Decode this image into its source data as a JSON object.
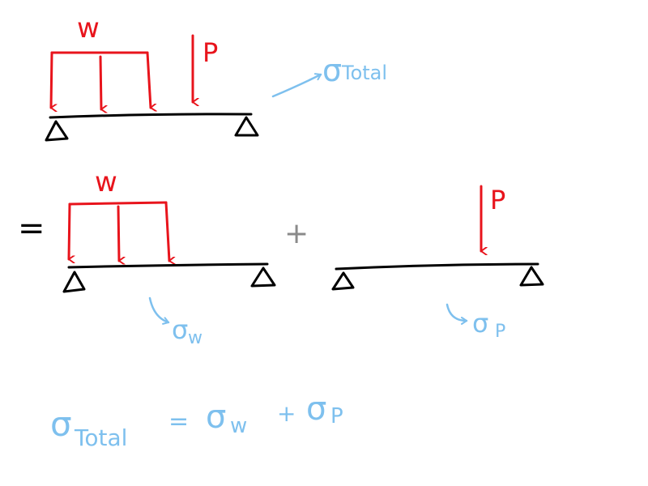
{
  "colors": {
    "load": "#e8141c",
    "beam": "#000000",
    "stress": "#7ec0ee",
    "operator": "#8a8a8a"
  },
  "total_system": {
    "w_label": "w",
    "p_label": "P",
    "result_sigma": "σ",
    "result_sub": "Total"
  },
  "w_system": {
    "equals": "=",
    "w_label": "w",
    "result_sigma": "σ",
    "result_sub": "w"
  },
  "plus": "+",
  "p_system": {
    "p_label": "P",
    "result_sigma": "σ",
    "result_sub": "P"
  },
  "equation": {
    "lhs_sigma": "σ",
    "lhs_sub": "Total",
    "eq": "=",
    "t1_sigma": "σ",
    "t1_sub": "w",
    "plus": "+",
    "t2_sigma": "σ",
    "t2_sub": "P"
  }
}
